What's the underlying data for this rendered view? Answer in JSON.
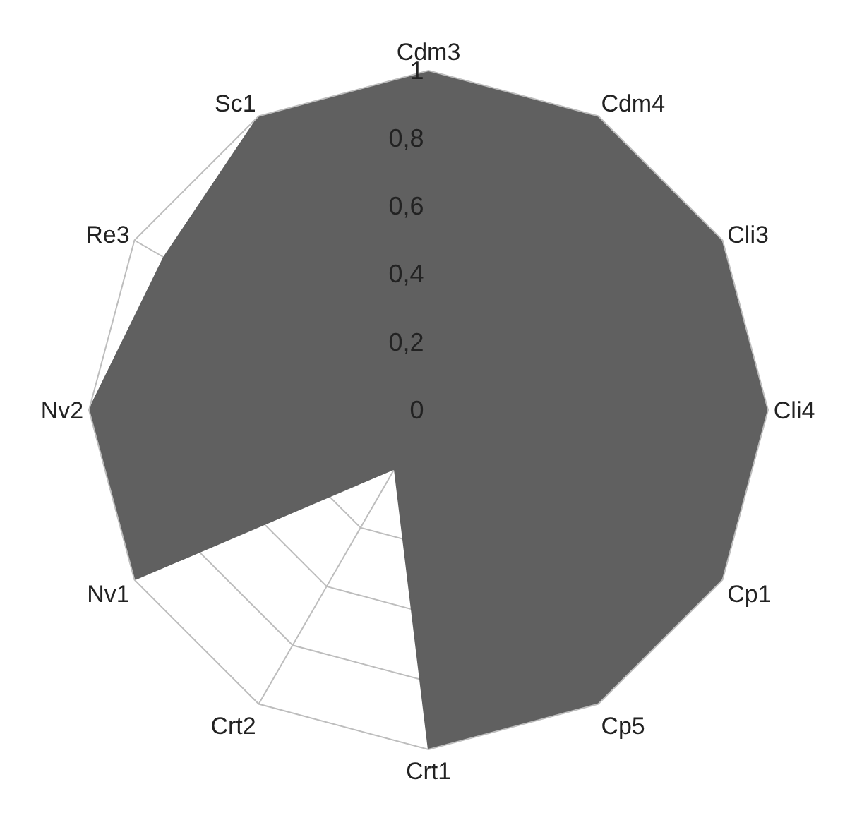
{
  "chart_data": {
    "type": "radar",
    "categories": [
      "Cdm3",
      "Cdm4",
      "Cli3",
      "Cli4",
      "Cp1",
      "Cp5",
      "Crt1",
      "Crt2",
      "Nv1",
      "Nv2",
      "Re3",
      "Sc1"
    ],
    "series": [
      {
        "color": "#606060",
        "values": [
          1,
          1,
          1,
          1,
          1,
          1,
          1,
          0.2,
          1,
          1,
          0.9,
          1
        ]
      }
    ],
    "ylim": [
      0,
      1
    ],
    "yticks": [
      0,
      {
        "value": 0.2,
        "label": "0,2"
      },
      {
        "value": 0.4,
        "label": "0,4"
      },
      {
        "value": 0.6,
        "label": "0,6"
      },
      {
        "value": 0.8,
        "label": "0,8"
      },
      1
    ],
    "grid": true
  }
}
